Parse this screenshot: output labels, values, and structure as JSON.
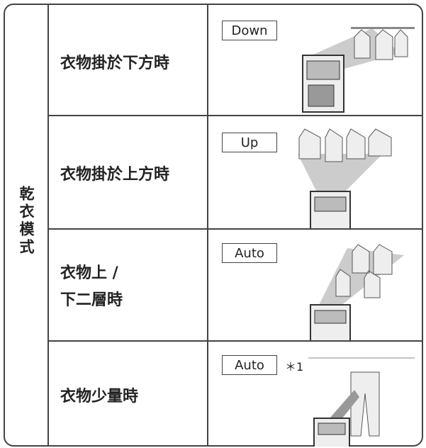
{
  "side_label": "乾衣模式",
  "rows": [
    {
      "label": [
        "衣物掛於下方時"
      ],
      "mode": "Down"
    },
    {
      "label": [
        "衣物掛於上方時"
      ],
      "mode": "Up"
    },
    {
      "label": [
        "衣物上 /",
        "下二層時"
      ],
      "mode": "Auto"
    },
    {
      "label": [
        "衣物少量時"
      ],
      "mode": "Auto",
      "note": "＊1"
    }
  ]
}
